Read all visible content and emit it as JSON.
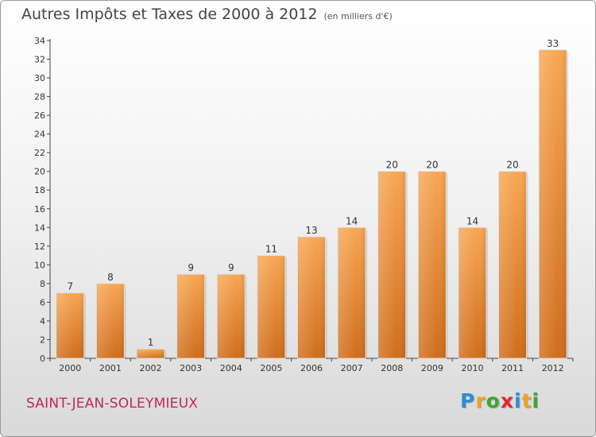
{
  "header": {
    "title": "Autres Impôts et Taxes de 2000 à 2012",
    "subtitle": "(en milliers d'€)"
  },
  "footer": {
    "commune": "SAINT-JEAN-SOLEYMIEUX",
    "logo": {
      "letters": [
        "P",
        "r",
        "o",
        "x",
        "i",
        "t",
        "i"
      ],
      "colors": [
        "#2b8fd6",
        "#f2a21a",
        "#3aa636",
        "#e8262a",
        "#2b8fd6",
        "#f2a21a",
        "#3aa636"
      ]
    }
  },
  "chart_data": {
    "type": "bar",
    "title": "Autres Impôts et Taxes de 2000 à 2012",
    "subtitle": "(en milliers d'€)",
    "xlabel": "",
    "ylabel": "",
    "categories": [
      "2000",
      "2001",
      "2002",
      "2003",
      "2004",
      "2005",
      "2006",
      "2007",
      "2008",
      "2009",
      "2010",
      "2011",
      "2012"
    ],
    "values": [
      7,
      8,
      1,
      9,
      9,
      11,
      13,
      14,
      20,
      20,
      14,
      20,
      33
    ],
    "ylim": [
      0,
      34
    ],
    "yticks": [
      0,
      2,
      4,
      6,
      8,
      10,
      12,
      14,
      16,
      18,
      20,
      22,
      24,
      26,
      28,
      30,
      32,
      34
    ],
    "grid": false,
    "bar_color": "#f39c43",
    "bar_color_dark": "#cf6d1c"
  }
}
